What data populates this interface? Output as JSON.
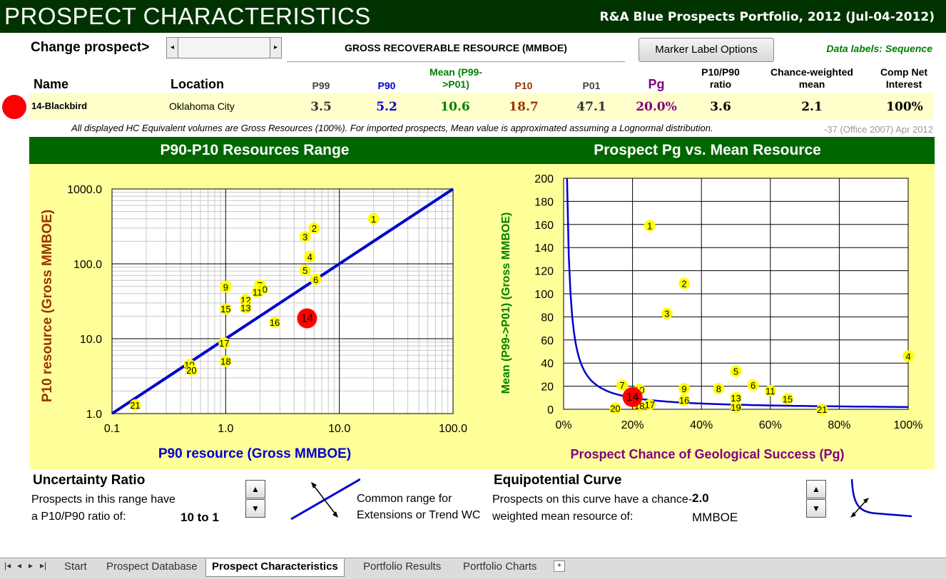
{
  "header": {
    "title": "PROSPECT CHARACTERISTICS",
    "subtitle": "R&A Blue Prospects Portfolio, 2012 (Jul-04-2012)"
  },
  "controls": {
    "change_prospect": "Change prospect>",
    "scroll_left": "◂",
    "scroll_right": "▸",
    "gross_label": "GROSS RECOVERABLE RESOURCE (MMBOE)",
    "marker_button": "Marker Label Options",
    "data_labels": "Data labels: Sequence"
  },
  "columns": {
    "name": "Name",
    "location": "Location",
    "p99": "P99",
    "p90": "P90",
    "mean": "Mean (P99->P01)",
    "p10": "P10",
    "p01": "P01",
    "pg": "Pg",
    "ratio": "P10/P90 ratio",
    "cw_mean": "Chance-weighted mean",
    "comp_net": "Comp Net Interest"
  },
  "prospect": {
    "name": "14-Blackbird",
    "location": "Oklahoma City",
    "p99": "3.5",
    "p90": "5.2",
    "mean": "10.6",
    "p10": "18.7",
    "p01": "47.1",
    "pg": "20.0%",
    "ratio": "3.6",
    "cw_mean": "2.1",
    "comp_net": "100%"
  },
  "notes": {
    "disclaimer": "All displayed HC Equivalent volumes are Gross Resources (100%). For imported prospects, Mean value is approximated assuming a Lognormal distribution.",
    "version": "-37 (Office 2007) Apr 2012"
  },
  "colors": {
    "header_bg": "#003300",
    "panel_bg": "#ffff99",
    "green_bar": "#006600",
    "p90_blue": "#0000cc",
    "p10_brown": "#993300",
    "mean_green": "#008000",
    "pg_purple": "#800080",
    "marker_yellow": "#ffff00",
    "marker_red": "#ff0000"
  },
  "chart_data": [
    {
      "type": "scatter",
      "title": "P90-P10 Resources Range",
      "xlabel": "P90 resource (Gross MMBOE)",
      "ylabel": "P10 resource (Gross MMBOE)",
      "xscale": "log",
      "yscale": "log",
      "xlim": [
        0.1,
        100
      ],
      "ylim": [
        1,
        1000
      ],
      "x_ticks": [
        "0.1",
        "1.0",
        "10.0",
        "100.0"
      ],
      "y_ticks": [
        "1.0",
        "10.0",
        "100.0",
        "1000.0"
      ],
      "grid": true,
      "points": [
        {
          "label": "1",
          "x": 20,
          "y": 400
        },
        {
          "label": "2",
          "x": 6.0,
          "y": 300
        },
        {
          "label": "3",
          "x": 5.0,
          "y": 230
        },
        {
          "label": "4",
          "x": 5.5,
          "y": 125
        },
        {
          "label": "5",
          "x": 5.0,
          "y": 82
        },
        {
          "label": "6",
          "x": 6.2,
          "y": 62
        },
        {
          "label": "7",
          "x": 2.0,
          "y": 52
        },
        {
          "label": "8",
          "x": 1.0,
          "y": 50
        },
        {
          "label": "9",
          "x": 1.0,
          "y": 49
        },
        {
          "label": "10",
          "x": 2.1,
          "y": 46
        },
        {
          "label": "11",
          "x": 1.9,
          "y": 42
        },
        {
          "label": "12",
          "x": 1.5,
          "y": 33
        },
        {
          "label": "13",
          "x": 1.5,
          "y": 26
        },
        {
          "label": "14",
          "x": 5.2,
          "y": 18.7,
          "highlight": true
        },
        {
          "label": "15",
          "x": 1.0,
          "y": 25
        },
        {
          "label": "16",
          "x": 2.7,
          "y": 16.5
        },
        {
          "label": "17",
          "x": 0.97,
          "y": 8.8
        },
        {
          "label": "18",
          "x": 1.0,
          "y": 5.0
        },
        {
          "label": "19",
          "x": 0.48,
          "y": 4.5
        },
        {
          "label": "20",
          "x": 0.5,
          "y": 3.8
        },
        {
          "label": "21",
          "x": 0.16,
          "y": 1.3
        }
      ],
      "reference_line": {
        "x": [
          0.1,
          100
        ],
        "y": [
          1,
          1000
        ]
      }
    },
    {
      "type": "scatter",
      "title": "Prospect Pg vs. Mean Resource",
      "xlabel": "Prospect Chance of Geological Success (Pg)",
      "ylabel": "Mean (P99->P01) (Gross MMBOE)",
      "xlim": [
        0,
        100
      ],
      "ylim": [
        0,
        200
      ],
      "x_ticks": [
        "0%",
        "20%",
        "40%",
        "60%",
        "80%",
        "100%"
      ],
      "y_ticks": [
        "0",
        "20",
        "40",
        "60",
        "80",
        "100",
        "120",
        "140",
        "160",
        "180",
        "200"
      ],
      "grid": true,
      "points": [
        {
          "label": "1",
          "x": 25,
          "y": 159
        },
        {
          "label": "2",
          "x": 35,
          "y": 109
        },
        {
          "label": "3",
          "x": 30,
          "y": 83
        },
        {
          "label": "4",
          "x": 100,
          "y": 46
        },
        {
          "label": "5",
          "x": 50,
          "y": 33
        },
        {
          "label": "6",
          "x": 55,
          "y": 21
        },
        {
          "label": "7",
          "x": 17,
          "y": 21
        },
        {
          "label": "8",
          "x": 45,
          "y": 18
        },
        {
          "label": "9",
          "x": 35,
          "y": 18
        },
        {
          "label": "10",
          "x": 22,
          "y": 17
        },
        {
          "label": "11",
          "x": 60,
          "y": 16
        },
        {
          "label": "12",
          "x": 21,
          "y": 14
        },
        {
          "label": "13",
          "x": 50,
          "y": 10
        },
        {
          "label": "14",
          "x": 20,
          "y": 10.6,
          "highlight": true
        },
        {
          "label": "15",
          "x": 65,
          "y": 9
        },
        {
          "label": "16",
          "x": 35,
          "y": 8
        },
        {
          "label": "17",
          "x": 25,
          "y": 4
        },
        {
          "label": "18",
          "x": 22,
          "y": 3
        },
        {
          "label": "19",
          "x": 50,
          "y": 2
        },
        {
          "label": "20",
          "x": 15,
          "y": 1
        },
        {
          "label": "21",
          "x": 75,
          "y": 0
        }
      ],
      "curve_value": 2.0
    }
  ],
  "uncertainty": {
    "title": "Uncertainty Ratio",
    "line1": "Prospects in this range have",
    "line2": "a P10/P90 ratio of:",
    "value": "10 to 1",
    "legend1": "Common range for",
    "legend2": "Extensions or Trend WC"
  },
  "equipotential": {
    "title": "Equipotential Curve",
    "line1": "Prospects on this curve have a chance-",
    "line2": "weighted mean resource of:",
    "value": "2.0",
    "unit": "MMBOE"
  },
  "tabs": [
    "Start",
    "Prospect Database",
    "Prospect Characteristics",
    "Portfolio Results",
    "Portfolio Charts"
  ]
}
